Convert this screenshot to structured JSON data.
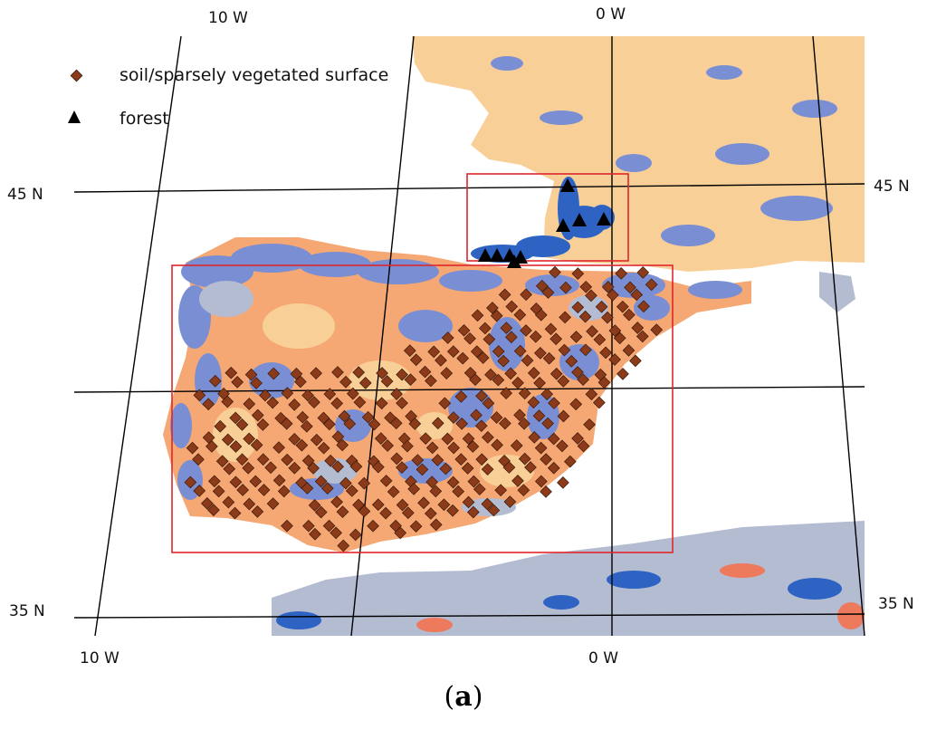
{
  "legend": [
    {
      "label": "soil/sparsely vegetated surface",
      "symbol": "diamond",
      "color": "#8B3A1A"
    },
    {
      "label": "forest",
      "symbol": "triangle",
      "color": "#000000"
    }
  ],
  "graticule_labels": {
    "top_left_lon": "10 W",
    "top_right_lon": "0 W",
    "bottom_left_lon": "10 W",
    "bottom_right_lon": "0 W",
    "left_45": "45 N",
    "right_45": "45 N",
    "left_35": "35 N",
    "right_35": "35 N"
  },
  "caption": {
    "open": "(",
    "letter": "a",
    "close": ")"
  },
  "colors": {
    "soil_light": "#F9CF98",
    "soil_orange": "#F5A874",
    "vegetation_blue": "#7A8FD3",
    "vegetation_gray": "#B4BCD2",
    "forest_blue": "#2E63C4",
    "bare_red": "#EE7A5E",
    "site_marker": "#8B3A1A",
    "box_outline": "#E0262C",
    "gridline": "#000000"
  }
}
